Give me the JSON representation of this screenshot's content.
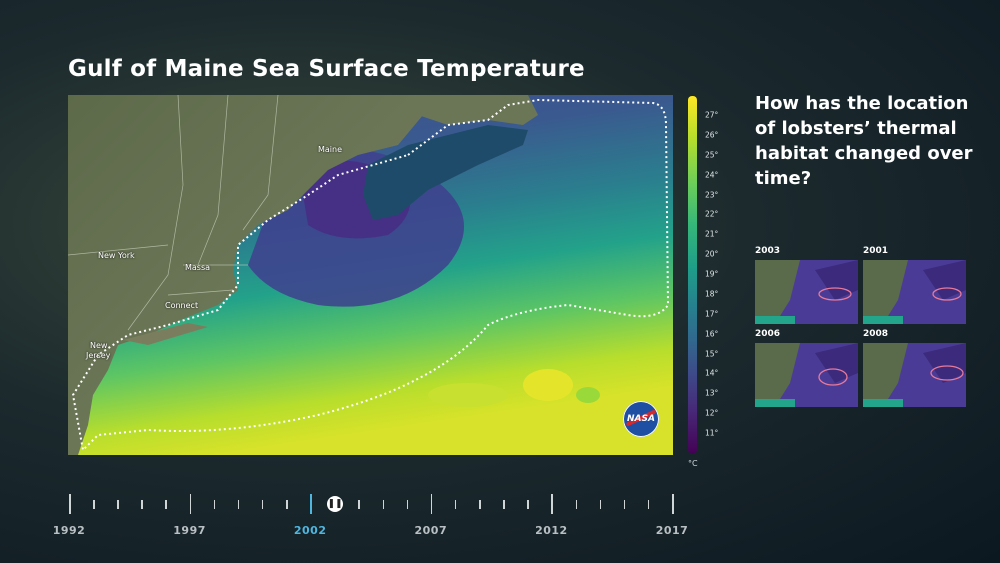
{
  "title": "Gulf of Maine Sea Surface Temperature",
  "question": "How has the location of lobsters’ thermal habitat changed over time?",
  "map": {
    "places": [
      {
        "name": "Maine"
      },
      {
        "name": "New York"
      },
      {
        "name": "Massa"
      },
      {
        "name": "Connect"
      },
      {
        "name": "New"
      },
      {
        "name": "Jersey"
      }
    ],
    "logo_text": "NASA"
  },
  "colorbar": {
    "ticks": [
      "27°",
      "26°",
      "25°",
      "24°",
      "23°",
      "22°",
      "21°",
      "20°",
      "19°",
      "18°",
      "17°",
      "16°",
      "15°",
      "14°",
      "13°",
      "12°",
      "11°"
    ],
    "unit": "°C"
  },
  "thumbnails": [
    {
      "year": "2003"
    },
    {
      "year": "2001"
    },
    {
      "year": "2006"
    },
    {
      "year": "2008"
    }
  ],
  "timeline": {
    "labels": [
      "1992",
      "1997",
      "2002",
      "2007",
      "2012",
      "2017"
    ],
    "active_label": "2002",
    "handle_icon": "pause-icon"
  }
}
